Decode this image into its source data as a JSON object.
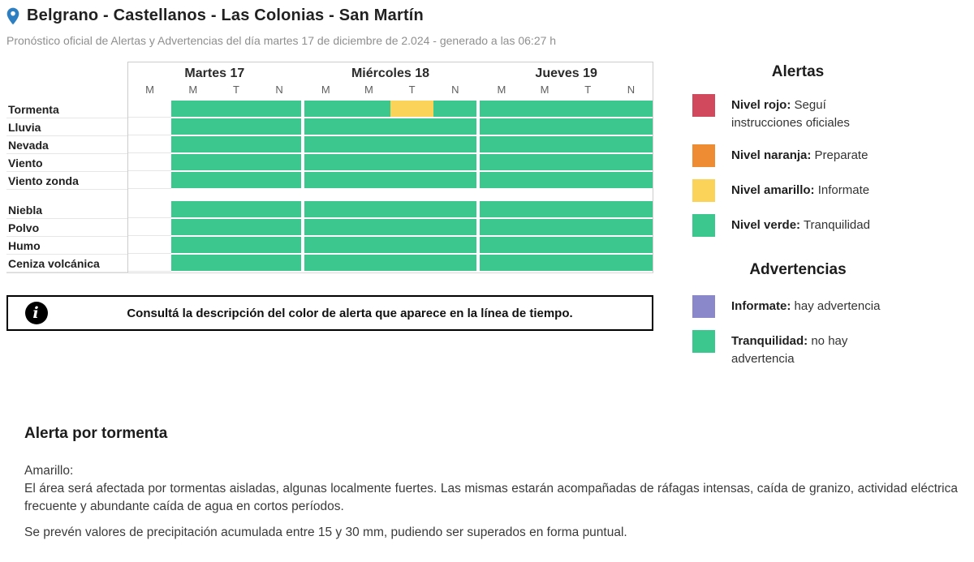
{
  "header": {
    "title": "Belgrano - Castellanos - Las Colonias - San Martín",
    "subtitle": "Pronóstico oficial de Alertas y Advertencias del día martes 17 de diciembre de 2.024 - generado a las 06:27 h"
  },
  "timeline": {
    "days": [
      {
        "label": "Martes 17",
        "periods": [
          "M",
          "M",
          "T",
          "N"
        ]
      },
      {
        "label": "Miércoles 18",
        "periods": [
          "M",
          "M",
          "T",
          "N"
        ]
      },
      {
        "label": "Jueves 19",
        "periods": [
          "M",
          "M",
          "T",
          "N"
        ]
      }
    ],
    "cell_colors": {
      "green": "#3cc78f",
      "yellow": "#fad358",
      "": "transparent"
    },
    "groups": [
      {
        "rows": [
          {
            "label": "Tormenta",
            "cells": [
              "",
              "green",
              "green",
              "green",
              "green",
              "green",
              "yellow",
              "green",
              "green",
              "green",
              "green",
              "green"
            ]
          },
          {
            "label": "Lluvia",
            "cells": [
              "",
              "green",
              "green",
              "green",
              "green",
              "green",
              "green",
              "green",
              "green",
              "green",
              "green",
              "green"
            ]
          },
          {
            "label": "Nevada",
            "cells": [
              "",
              "green",
              "green",
              "green",
              "green",
              "green",
              "green",
              "green",
              "green",
              "green",
              "green",
              "green"
            ]
          },
          {
            "label": "Viento",
            "cells": [
              "",
              "green",
              "green",
              "green",
              "green",
              "green",
              "green",
              "green",
              "green",
              "green",
              "green",
              "green"
            ]
          },
          {
            "label": "Viento zonda",
            "cells": [
              "",
              "green",
              "green",
              "green",
              "green",
              "green",
              "green",
              "green",
              "green",
              "green",
              "green",
              "green"
            ]
          }
        ]
      },
      {
        "rows": [
          {
            "label": "Niebla",
            "cells": [
              "",
              "green",
              "green",
              "green",
              "green",
              "green",
              "green",
              "green",
              "green",
              "green",
              "green",
              "green"
            ]
          },
          {
            "label": "Polvo",
            "cells": [
              "",
              "green",
              "green",
              "green",
              "green",
              "green",
              "green",
              "green",
              "green",
              "green",
              "green",
              "green"
            ]
          },
          {
            "label": "Humo",
            "cells": [
              "",
              "green",
              "green",
              "green",
              "green",
              "green",
              "green",
              "green",
              "green",
              "green",
              "green",
              "green"
            ]
          },
          {
            "label": "Ceniza volcánica",
            "cells": [
              "",
              "green",
              "green",
              "green",
              "green",
              "green",
              "green",
              "green",
              "green",
              "green",
              "green",
              "green"
            ]
          }
        ]
      }
    ]
  },
  "info_box": {
    "icon": "i",
    "text": "Consultá la descripción del color de alerta que aparece en la línea de tiempo."
  },
  "legend": {
    "alerts": {
      "title": "Alertas",
      "items": [
        {
          "color": "#d0495d",
          "name": "Nivel rojo:",
          "description": "Seguí instrucciones oficiales"
        },
        {
          "color": "#ee8c33",
          "name": "Nivel naranja:",
          "description": "Preparate"
        },
        {
          "color": "#fad358",
          "name": "Nivel amarillo:",
          "description": "Informate"
        },
        {
          "color": "#3cc78f",
          "name": "Nivel verde:",
          "description": "Tranquilidad"
        }
      ]
    },
    "warnings": {
      "title": "Advertencias",
      "items": [
        {
          "color": "#8b87cb",
          "name": "Informate:",
          "description": "hay advertencia"
        },
        {
          "color": "#3cc78f",
          "name": "Tranquilidad:",
          "description": "no hay advertencia"
        }
      ]
    }
  },
  "alert_detail": {
    "title": "Alerta por tormenta",
    "level_label": "Amarillo:",
    "paragraph1": "El área será afectada por tormentas aisladas, algunas localmente fuertes. Las mismas estarán acompañadas de ráfagas intensas, caída de granizo, actividad eléctrica frecuente y abundante caída de agua en cortos períodos.",
    "paragraph2": "Se prevén valores de precipitación acumulada entre 15 y 30 mm, pudiendo ser superados en forma puntual."
  }
}
